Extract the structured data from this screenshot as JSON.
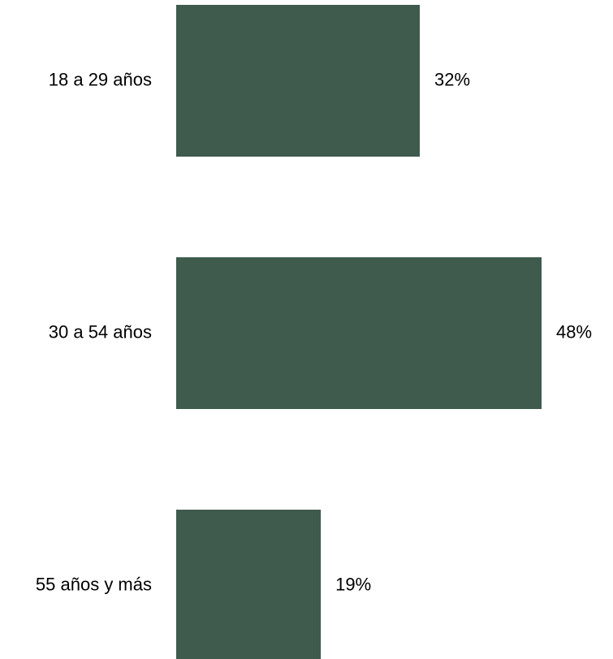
{
  "chart_data": {
    "type": "bar",
    "orientation": "horizontal",
    "categories": [
      "18 a 29 años",
      "30 a 54 años",
      "55 años y más"
    ],
    "values": [
      32,
      48,
      19
    ],
    "value_labels": [
      "32%",
      "48%",
      "19%"
    ],
    "unit": "%",
    "xlim": [
      0,
      48
    ],
    "grid": false,
    "legend": "none",
    "bar_color": "#3f5b4d"
  }
}
